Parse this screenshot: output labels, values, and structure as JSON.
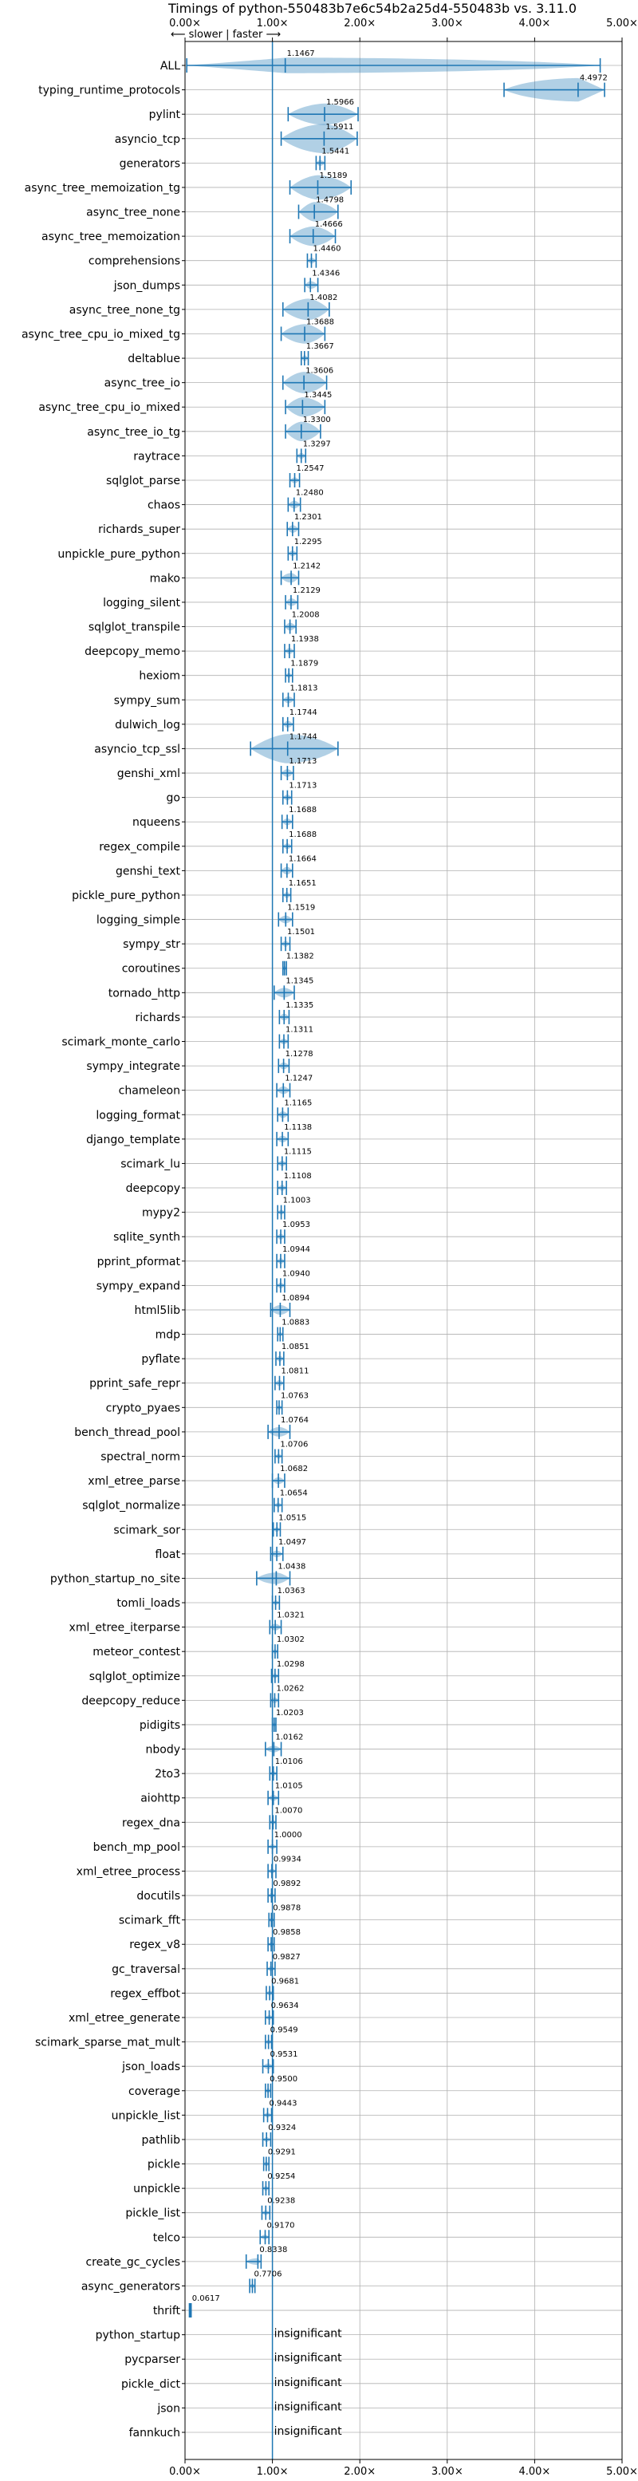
{
  "chart_data": {
    "type": "violin",
    "title": "Timings of python-550483b7e6c54b2a25d4-550483b vs. 3.11.0",
    "direction_label": "⟵ slower | faster ⟶",
    "xlabel": "",
    "ylabel": "",
    "xlim": [
      0,
      5
    ],
    "xticks": [
      0,
      1,
      2,
      3,
      4,
      5
    ],
    "xtick_labels": [
      "0.00×",
      "1.00×",
      "2.00×",
      "3.00×",
      "4.00×",
      "5.00×"
    ],
    "reference_line": 1.0,
    "grid": true,
    "insignificant_label": "insignificant",
    "colors": {
      "violin": "#1f77b4",
      "reference": "#1f77b4"
    },
    "benchmarks": [
      {
        "name": "ALL",
        "value": 1.1467,
        "label": "1.1467",
        "lo": 0.02,
        "hi": 4.75,
        "w": 0.16
      },
      {
        "name": "typing_runtime_protocols",
        "value": 4.4972,
        "label": "4.4972",
        "lo": 3.65,
        "hi": 4.8,
        "w": 0.24
      },
      {
        "name": "pylint",
        "value": 1.5966,
        "label": "1.5966",
        "lo": 1.18,
        "hi": 1.98,
        "w": 0.22
      },
      {
        "name": "asyncio_tcp",
        "value": 1.5911,
        "label": "1.5911",
        "lo": 1.1,
        "hi": 1.97,
        "w": 0.3
      },
      {
        "name": "generators",
        "value": 1.5441,
        "label": "1.5441",
        "lo": 1.5,
        "hi": 1.6,
        "w": 0.06
      },
      {
        "name": "async_tree_memoization_tg",
        "value": 1.5189,
        "label": "1.5189",
        "lo": 1.2,
        "hi": 1.9,
        "w": 0.25
      },
      {
        "name": "async_tree_none",
        "value": 1.4798,
        "label": "1.4798",
        "lo": 1.3,
        "hi": 1.75,
        "w": 0.2
      },
      {
        "name": "async_tree_memoization",
        "value": 1.4666,
        "label": "1.4666",
        "lo": 1.2,
        "hi": 1.72,
        "w": 0.2
      },
      {
        "name": "comprehensions",
        "value": 1.446,
        "label": "1.4460",
        "lo": 1.4,
        "hi": 1.5,
        "w": 0.06
      },
      {
        "name": "json_dumps",
        "value": 1.4346,
        "label": "1.4346",
        "lo": 1.37,
        "hi": 1.52,
        "w": 0.08
      },
      {
        "name": "async_tree_none_tg",
        "value": 1.4082,
        "label": "1.4082",
        "lo": 1.12,
        "hi": 1.65,
        "w": 0.22
      },
      {
        "name": "async_tree_cpu_io_mixed_tg",
        "value": 1.3688,
        "label": "1.3688",
        "lo": 1.1,
        "hi": 1.6,
        "w": 0.2
      },
      {
        "name": "deltablue",
        "value": 1.3667,
        "label": "1.3667",
        "lo": 1.33,
        "hi": 1.41,
        "w": 0.06
      },
      {
        "name": "async_tree_io",
        "value": 1.3606,
        "label": "1.3606",
        "lo": 1.12,
        "hi": 1.62,
        "w": 0.22
      },
      {
        "name": "async_tree_cpu_io_mixed",
        "value": 1.3445,
        "label": "1.3445",
        "lo": 1.15,
        "hi": 1.6,
        "w": 0.2
      },
      {
        "name": "async_tree_io_tg",
        "value": 1.33,
        "label": "1.3300",
        "lo": 1.15,
        "hi": 1.55,
        "w": 0.2
      },
      {
        "name": "raytrace",
        "value": 1.3297,
        "label": "1.3297",
        "lo": 1.28,
        "hi": 1.38,
        "w": 0.06
      },
      {
        "name": "sqlglot_parse",
        "value": 1.2547,
        "label": "1.2547",
        "lo": 1.2,
        "hi": 1.31,
        "w": 0.06
      },
      {
        "name": "chaos",
        "value": 1.248,
        "label": "1.2480",
        "lo": 1.18,
        "hi": 1.32,
        "w": 0.08
      },
      {
        "name": "richards_super",
        "value": 1.2301,
        "label": "1.2301",
        "lo": 1.17,
        "hi": 1.3,
        "w": 0.08
      },
      {
        "name": "unpickle_pure_python",
        "value": 1.2295,
        "label": "1.2295",
        "lo": 1.18,
        "hi": 1.28,
        "w": 0.06
      },
      {
        "name": "mako",
        "value": 1.2142,
        "label": "1.2142",
        "lo": 1.1,
        "hi": 1.3,
        "w": 0.1
      },
      {
        "name": "logging_silent",
        "value": 1.2129,
        "label": "1.2129",
        "lo": 1.15,
        "hi": 1.29,
        "w": 0.08
      },
      {
        "name": "sqlglot_transpile",
        "value": 1.2008,
        "label": "1.2008",
        "lo": 1.14,
        "hi": 1.27,
        "w": 0.08
      },
      {
        "name": "deepcopy_memo",
        "value": 1.1938,
        "label": "1.1938",
        "lo": 1.14,
        "hi": 1.25,
        "w": 0.06
      },
      {
        "name": "hexiom",
        "value": 1.1879,
        "label": "1.1879",
        "lo": 1.15,
        "hi": 1.23,
        "w": 0.05
      },
      {
        "name": "sympy_sum",
        "value": 1.1813,
        "label": "1.1813",
        "lo": 1.12,
        "hi": 1.25,
        "w": 0.07
      },
      {
        "name": "dulwich_log",
        "value": 1.1744,
        "label": "1.1744",
        "lo": 1.12,
        "hi": 1.24,
        "w": 0.07
      },
      {
        "name": "asyncio_tcp_ssl",
        "value": 1.1744,
        "label": "1.1744",
        "lo": 0.75,
        "hi": 1.75,
        "w": 0.3
      },
      {
        "name": "genshi_xml",
        "value": 1.1713,
        "label": "1.1713",
        "lo": 1.1,
        "hi": 1.24,
        "w": 0.08
      },
      {
        "name": "go",
        "value": 1.1713,
        "label": "1.1713",
        "lo": 1.12,
        "hi": 1.22,
        "w": 0.06
      },
      {
        "name": "nqueens",
        "value": 1.1688,
        "label": "1.1688",
        "lo": 1.11,
        "hi": 1.23,
        "w": 0.07
      },
      {
        "name": "regex_compile",
        "value": 1.1688,
        "label": "1.1688",
        "lo": 1.12,
        "hi": 1.22,
        "w": 0.06
      },
      {
        "name": "genshi_text",
        "value": 1.1664,
        "label": "1.1664",
        "lo": 1.1,
        "hi": 1.23,
        "w": 0.08
      },
      {
        "name": "pickle_pure_python",
        "value": 1.1651,
        "label": "1.1651",
        "lo": 1.12,
        "hi": 1.21,
        "w": 0.06
      },
      {
        "name": "logging_simple",
        "value": 1.1519,
        "label": "1.1519",
        "lo": 1.07,
        "hi": 1.23,
        "w": 0.08
      },
      {
        "name": "sympy_str",
        "value": 1.1501,
        "label": "1.1501",
        "lo": 1.1,
        "hi": 1.2,
        "w": 0.06
      },
      {
        "name": "coroutines",
        "value": 1.1382,
        "label": "1.1382",
        "lo": 1.12,
        "hi": 1.16,
        "w": 0.05
      },
      {
        "name": "tornado_http",
        "value": 1.1345,
        "label": "1.1345",
        "lo": 1.02,
        "hi": 1.25,
        "w": 0.1
      },
      {
        "name": "richards",
        "value": 1.1335,
        "label": "1.1335",
        "lo": 1.08,
        "hi": 1.19,
        "w": 0.07
      },
      {
        "name": "scimark_monte_carlo",
        "value": 1.1311,
        "label": "1.1311",
        "lo": 1.08,
        "hi": 1.18,
        "w": 0.06
      },
      {
        "name": "sympy_integrate",
        "value": 1.1278,
        "label": "1.1278",
        "lo": 1.07,
        "hi": 1.19,
        "w": 0.07
      },
      {
        "name": "chameleon",
        "value": 1.1247,
        "label": "1.1247",
        "lo": 1.05,
        "hi": 1.2,
        "w": 0.08
      },
      {
        "name": "logging_format",
        "value": 1.1165,
        "label": "1.1165",
        "lo": 1.06,
        "hi": 1.18,
        "w": 0.07
      },
      {
        "name": "django_template",
        "value": 1.1138,
        "label": "1.1138",
        "lo": 1.05,
        "hi": 1.18,
        "w": 0.07
      },
      {
        "name": "scimark_lu",
        "value": 1.1115,
        "label": "1.1115",
        "lo": 1.06,
        "hi": 1.16,
        "w": 0.06
      },
      {
        "name": "deepcopy",
        "value": 1.1108,
        "label": "1.1108",
        "lo": 1.06,
        "hi": 1.16,
        "w": 0.06
      },
      {
        "name": "mypy2",
        "value": 1.1003,
        "label": "1.1003",
        "lo": 1.06,
        "hi": 1.14,
        "w": 0.05
      },
      {
        "name": "sqlite_synth",
        "value": 1.0953,
        "label": "1.0953",
        "lo": 1.05,
        "hi": 1.14,
        "w": 0.06
      },
      {
        "name": "pprint_pformat",
        "value": 1.0944,
        "label": "1.0944",
        "lo": 1.05,
        "hi": 1.14,
        "w": 0.06
      },
      {
        "name": "sympy_expand",
        "value": 1.094,
        "label": "1.0940",
        "lo": 1.05,
        "hi": 1.14,
        "w": 0.06
      },
      {
        "name": "html5lib",
        "value": 1.0894,
        "label": "1.0894",
        "lo": 0.98,
        "hi": 1.2,
        "w": 0.1
      },
      {
        "name": "mdp",
        "value": 1.0883,
        "label": "1.0883",
        "lo": 1.06,
        "hi": 1.12,
        "w": 0.04
      },
      {
        "name": "pyflate",
        "value": 1.0851,
        "label": "1.0851",
        "lo": 1.04,
        "hi": 1.13,
        "w": 0.06
      },
      {
        "name": "pprint_safe_repr",
        "value": 1.0811,
        "label": "1.0811",
        "lo": 1.03,
        "hi": 1.13,
        "w": 0.06
      },
      {
        "name": "crypto_pyaes",
        "value": 1.0763,
        "label": "1.0763",
        "lo": 1.05,
        "hi": 1.11,
        "w": 0.04
      },
      {
        "name": "bench_thread_pool",
        "value": 1.0764,
        "label": "1.0764",
        "lo": 0.95,
        "hi": 1.2,
        "w": 0.1
      },
      {
        "name": "spectral_norm",
        "value": 1.0706,
        "label": "1.0706",
        "lo": 1.03,
        "hi": 1.11,
        "w": 0.05
      },
      {
        "name": "xml_etree_parse",
        "value": 1.0682,
        "label": "1.0682",
        "lo": 1.0,
        "hi": 1.14,
        "w": 0.07
      },
      {
        "name": "sqlglot_normalize",
        "value": 1.0654,
        "label": "1.0654",
        "lo": 1.02,
        "hi": 1.11,
        "w": 0.05
      },
      {
        "name": "scimark_sor",
        "value": 1.0515,
        "label": "1.0515",
        "lo": 1.01,
        "hi": 1.09,
        "w": 0.05
      },
      {
        "name": "float",
        "value": 1.0497,
        "label": "1.0497",
        "lo": 0.98,
        "hi": 1.12,
        "w": 0.07
      },
      {
        "name": "python_startup_no_site",
        "value": 1.0438,
        "label": "1.0438",
        "lo": 0.82,
        "hi": 1.2,
        "w": 0.12
      },
      {
        "name": "tomli_loads",
        "value": 1.0363,
        "label": "1.0363",
        "lo": 1.0,
        "hi": 1.08,
        "w": 0.05
      },
      {
        "name": "xml_etree_iterparse",
        "value": 1.0321,
        "label": "1.0321",
        "lo": 0.97,
        "hi": 1.1,
        "w": 0.07
      },
      {
        "name": "meteor_contest",
        "value": 1.0302,
        "label": "1.0302",
        "lo": 1.0,
        "hi": 1.06,
        "w": 0.04
      },
      {
        "name": "sqlglot_optimize",
        "value": 1.0298,
        "label": "1.0298",
        "lo": 0.99,
        "hi": 1.07,
        "w": 0.05
      },
      {
        "name": "deepcopy_reduce",
        "value": 1.0262,
        "label": "1.0262",
        "lo": 0.98,
        "hi": 1.07,
        "w": 0.06
      },
      {
        "name": "pidigits",
        "value": 1.0203,
        "label": "1.0203",
        "lo": 1.0,
        "hi": 1.04,
        "w": 0.03
      },
      {
        "name": "nbody",
        "value": 1.0162,
        "label": "1.0162",
        "lo": 0.92,
        "hi": 1.1,
        "w": 0.07
      },
      {
        "name": "2to3",
        "value": 1.0106,
        "label": "1.0106",
        "lo": 0.97,
        "hi": 1.05,
        "w": 0.05
      },
      {
        "name": "aiohttp",
        "value": 1.0105,
        "label": "1.0105",
        "lo": 0.95,
        "hi": 1.07,
        "w": 0.06
      },
      {
        "name": "regex_dna",
        "value": 1.007,
        "label": "1.0070",
        "lo": 0.97,
        "hi": 1.04,
        "w": 0.04
      },
      {
        "name": "bench_mp_pool",
        "value": 1.0,
        "label": "1.0000",
        "lo": 0.95,
        "hi": 1.05,
        "w": 0.05
      },
      {
        "name": "xml_etree_process",
        "value": 0.9934,
        "label": "0.9934",
        "lo": 0.95,
        "hi": 1.04,
        "w": 0.05
      },
      {
        "name": "docutils",
        "value": 0.9892,
        "label": "0.9892",
        "lo": 0.95,
        "hi": 1.03,
        "w": 0.05
      },
      {
        "name": "scimark_fft",
        "value": 0.9878,
        "label": "0.9878",
        "lo": 0.96,
        "hi": 1.02,
        "w": 0.04
      },
      {
        "name": "regex_v8",
        "value": 0.9858,
        "label": "0.9858",
        "lo": 0.95,
        "hi": 1.02,
        "w": 0.04
      },
      {
        "name": "gc_traversal",
        "value": 0.9827,
        "label": "0.9827",
        "lo": 0.94,
        "hi": 1.03,
        "w": 0.05
      },
      {
        "name": "regex_effbot",
        "value": 0.9681,
        "label": "0.9681",
        "lo": 0.93,
        "hi": 1.01,
        "w": 0.05
      },
      {
        "name": "xml_etree_generate",
        "value": 0.9634,
        "label": "0.9634",
        "lo": 0.92,
        "hi": 1.01,
        "w": 0.05
      },
      {
        "name": "scimark_sparse_mat_mult",
        "value": 0.9549,
        "label": "0.9549",
        "lo": 0.92,
        "hi": 0.99,
        "w": 0.04
      },
      {
        "name": "json_loads",
        "value": 0.9531,
        "label": "0.9531",
        "lo": 0.89,
        "hi": 1.01,
        "w": 0.06
      },
      {
        "name": "coverage",
        "value": 0.95,
        "label": "0.9500",
        "lo": 0.92,
        "hi": 0.98,
        "w": 0.04
      },
      {
        "name": "unpickle_list",
        "value": 0.9443,
        "label": "0.9443",
        "lo": 0.9,
        "hi": 0.99,
        "w": 0.05
      },
      {
        "name": "pathlib",
        "value": 0.9324,
        "label": "0.9324",
        "lo": 0.89,
        "hi": 0.98,
        "w": 0.05
      },
      {
        "name": "pickle",
        "value": 0.9291,
        "label": "0.9291",
        "lo": 0.9,
        "hi": 0.96,
        "w": 0.04
      },
      {
        "name": "unpickle",
        "value": 0.9254,
        "label": "0.9254",
        "lo": 0.89,
        "hi": 0.96,
        "w": 0.04
      },
      {
        "name": "pickle_list",
        "value": 0.9238,
        "label": "0.9238",
        "lo": 0.88,
        "hi": 0.97,
        "w": 0.05
      },
      {
        "name": "telco",
        "value": 0.917,
        "label": "0.9170",
        "lo": 0.86,
        "hi": 0.96,
        "w": 0.05
      },
      {
        "name": "create_gc_cycles",
        "value": 0.8338,
        "label": "0.8338",
        "lo": 0.7,
        "hi": 0.87,
        "w": 0.07
      },
      {
        "name": "async_generators",
        "value": 0.7706,
        "label": "0.7706",
        "lo": 0.74,
        "hi": 0.8,
        "w": 0.04
      },
      {
        "name": "thrift",
        "value": 0.0617,
        "label": "0.0617",
        "lo": 0.05,
        "hi": 0.07,
        "w": 0.03
      },
      {
        "name": "python_startup",
        "insignificant": true
      },
      {
        "name": "pycparser",
        "insignificant": true
      },
      {
        "name": "pickle_dict",
        "insignificant": true
      },
      {
        "name": "json",
        "insignificant": true
      },
      {
        "name": "fannkuch",
        "insignificant": true
      }
    ]
  }
}
